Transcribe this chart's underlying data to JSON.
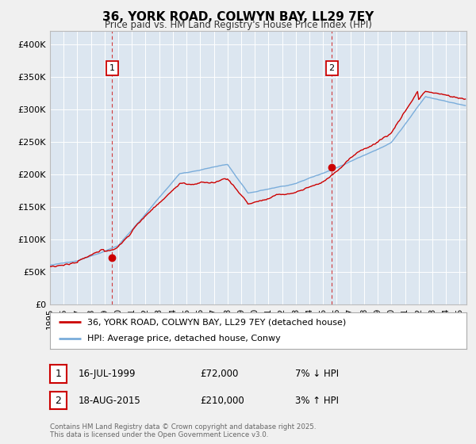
{
  "title": "36, YORK ROAD, COLWYN BAY, LL29 7EY",
  "subtitle": "Price paid vs. HM Land Registry's House Price Index (HPI)",
  "red_label": "36, YORK ROAD, COLWYN BAY, LL29 7EY (detached house)",
  "blue_label": "HPI: Average price, detached house, Conwy",
  "annotation1": {
    "num": "1",
    "date": "16-JUL-1999",
    "price": "£72,000",
    "pct": "7% ↓ HPI",
    "x_year": 1999.54
  },
  "annotation2": {
    "num": "2",
    "date": "18-AUG-2015",
    "price": "£210,000",
    "pct": "3% ↑ HPI",
    "x_year": 2015.63
  },
  "sale1_y": 72000,
  "sale2_y": 210000,
  "footer1": "Contains HM Land Registry data © Crown copyright and database right 2025.",
  "footer2": "This data is licensed under the Open Government Licence v3.0.",
  "ylim": [
    0,
    420000
  ],
  "yticks": [
    0,
    50000,
    100000,
    150000,
    200000,
    250000,
    300000,
    350000,
    400000
  ],
  "ytick_labels": [
    "£0",
    "£50K",
    "£100K",
    "£150K",
    "£200K",
    "£250K",
    "£300K",
    "£350K",
    "£400K"
  ],
  "bg_color": "#f0f0f0",
  "plot_bg_color": "#dce6f0",
  "grid_color": "#ffffff",
  "red_color": "#cc0000",
  "blue_color": "#7aaddb",
  "dashed_color": "#cc0000",
  "annotation_box_color": "#cc0000",
  "xlim_start": 1995,
  "xlim_end": 2025.5
}
